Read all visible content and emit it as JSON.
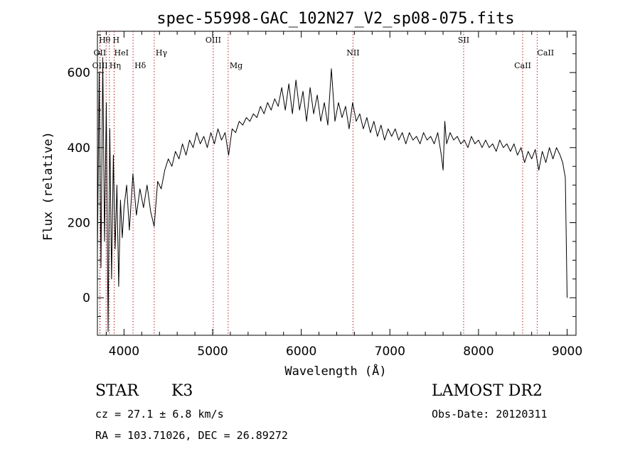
{
  "chart_data": {
    "type": "line",
    "title": "spec-55998-GAC_102N27_V2_sp08-075.fits",
    "xlabel": "Wavelength (Å)",
    "ylabel": "Flux (relative)",
    "xlim": [
      3700,
      9100
    ],
    "ylim": [
      -100,
      710
    ],
    "x_ticks": [
      4000,
      5000,
      6000,
      7000,
      8000,
      9000
    ],
    "y_ticks": [
      0,
      200,
      400,
      600
    ],
    "grid": false,
    "line_color": "#000000",
    "marker_color": "#b22222",
    "series": [
      {
        "values": [
          [
            3700,
            120
          ],
          [
            3720,
            600
          ],
          [
            3740,
            80
          ],
          [
            3760,
            640
          ],
          [
            3780,
            150
          ],
          [
            3800,
            520
          ],
          [
            3820,
            -90
          ],
          [
            3840,
            450
          ],
          [
            3860,
            50
          ],
          [
            3880,
            380
          ],
          [
            3900,
            130
          ],
          [
            3920,
            300
          ],
          [
            3940,
            30
          ],
          [
            3960,
            260
          ],
          [
            3980,
            160
          ],
          [
            4000,
            240
          ],
          [
            4030,
            300
          ],
          [
            4060,
            180
          ],
          [
            4100,
            330
          ],
          [
            4140,
            220
          ],
          [
            4180,
            290
          ],
          [
            4220,
            240
          ],
          [
            4260,
            300
          ],
          [
            4300,
            230
          ],
          [
            4340,
            190
          ],
          [
            4380,
            310
          ],
          [
            4420,
            290
          ],
          [
            4460,
            340
          ],
          [
            4500,
            370
          ],
          [
            4540,
            350
          ],
          [
            4580,
            390
          ],
          [
            4620,
            370
          ],
          [
            4660,
            410
          ],
          [
            4700,
            380
          ],
          [
            4740,
            420
          ],
          [
            4780,
            400
          ],
          [
            4820,
            440
          ],
          [
            4860,
            410
          ],
          [
            4900,
            430
          ],
          [
            4940,
            400
          ],
          [
            4980,
            440
          ],
          [
            5020,
            410
          ],
          [
            5060,
            450
          ],
          [
            5100,
            420
          ],
          [
            5140,
            440
          ],
          [
            5180,
            380
          ],
          [
            5220,
            450
          ],
          [
            5260,
            440
          ],
          [
            5300,
            470
          ],
          [
            5340,
            460
          ],
          [
            5380,
            480
          ],
          [
            5420,
            470
          ],
          [
            5460,
            490
          ],
          [
            5500,
            480
          ],
          [
            5540,
            510
          ],
          [
            5580,
            490
          ],
          [
            5620,
            520
          ],
          [
            5660,
            500
          ],
          [
            5700,
            530
          ],
          [
            5740,
            510
          ],
          [
            5780,
            560
          ],
          [
            5820,
            500
          ],
          [
            5860,
            570
          ],
          [
            5900,
            490
          ],
          [
            5940,
            580
          ],
          [
            5980,
            500
          ],
          [
            6020,
            550
          ],
          [
            6060,
            470
          ],
          [
            6100,
            560
          ],
          [
            6140,
            490
          ],
          [
            6180,
            540
          ],
          [
            6220,
            470
          ],
          [
            6260,
            520
          ],
          [
            6300,
            460
          ],
          [
            6340,
            610
          ],
          [
            6380,
            470
          ],
          [
            6420,
            520
          ],
          [
            6460,
            480
          ],
          [
            6500,
            510
          ],
          [
            6540,
            450
          ],
          [
            6580,
            520
          ],
          [
            6620,
            470
          ],
          [
            6660,
            490
          ],
          [
            6700,
            450
          ],
          [
            6740,
            480
          ],
          [
            6780,
            440
          ],
          [
            6820,
            470
          ],
          [
            6860,
            430
          ],
          [
            6900,
            460
          ],
          [
            6940,
            420
          ],
          [
            6980,
            450
          ],
          [
            7020,
            430
          ],
          [
            7060,
            450
          ],
          [
            7100,
            420
          ],
          [
            7140,
            440
          ],
          [
            7180,
            410
          ],
          [
            7220,
            440
          ],
          [
            7260,
            420
          ],
          [
            7300,
            430
          ],
          [
            7340,
            410
          ],
          [
            7380,
            440
          ],
          [
            7420,
            420
          ],
          [
            7460,
            430
          ],
          [
            7500,
            410
          ],
          [
            7540,
            440
          ],
          [
            7580,
            380
          ],
          [
            7600,
            340
          ],
          [
            7620,
            470
          ],
          [
            7640,
            410
          ],
          [
            7680,
            440
          ],
          [
            7720,
            420
          ],
          [
            7760,
            430
          ],
          [
            7800,
            410
          ],
          [
            7840,
            420
          ],
          [
            7880,
            400
          ],
          [
            7920,
            430
          ],
          [
            7960,
            410
          ],
          [
            8000,
            420
          ],
          [
            8040,
            400
          ],
          [
            8080,
            420
          ],
          [
            8120,
            400
          ],
          [
            8160,
            410
          ],
          [
            8200,
            390
          ],
          [
            8240,
            420
          ],
          [
            8280,
            400
          ],
          [
            8320,
            410
          ],
          [
            8360,
            390
          ],
          [
            8400,
            410
          ],
          [
            8440,
            380
          ],
          [
            8480,
            400
          ],
          [
            8520,
            360
          ],
          [
            8560,
            390
          ],
          [
            8600,
            370
          ],
          [
            8640,
            395
          ],
          [
            8680,
            340
          ],
          [
            8720,
            390
          ],
          [
            8760,
            360
          ],
          [
            8800,
            400
          ],
          [
            8840,
            370
          ],
          [
            8880,
            400
          ],
          [
            8920,
            380
          ],
          [
            8950,
            360
          ],
          [
            8980,
            320
          ],
          [
            9000,
            0
          ]
        ]
      }
    ],
    "line_markers": [
      {
        "label": "Hθ",
        "x": 3798
      },
      {
        "label": "H",
        "x": 3889
      },
      {
        "label": "OII",
        "x": 3727
      },
      {
        "label": "HeI",
        "x": 3889
      },
      {
        "label": "OIII",
        "x": 3729
      },
      {
        "label": "Hη",
        "x": 3835
      },
      {
        "label": "Hδ",
        "x": 4102
      },
      {
        "label": "Hγ",
        "x": 4341
      },
      {
        "label": "OIII",
        "x": 5007
      },
      {
        "label": "Mg",
        "x": 5175
      },
      {
        "label": "NII",
        "x": 6584
      },
      {
        "label": "SII",
        "x": 7832
      },
      {
        "label": "CaII",
        "x": 8498
      },
      {
        "label": "CaII",
        "x": 8662
      }
    ]
  },
  "info": {
    "object_class": "STAR",
    "subclass": "K3",
    "redshift": "cz = 27.1 ± 6.8 km/s",
    "coordinates": "RA = 103.71026, DEC =  26.89272",
    "survey": "LAMOST DR2",
    "obs_date": "Obs-Date: 20120311"
  }
}
